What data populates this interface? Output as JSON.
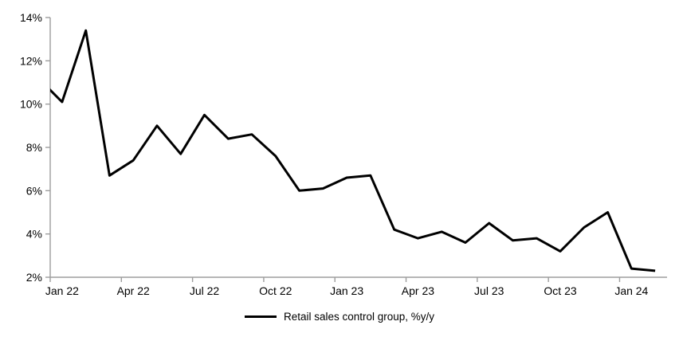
{
  "chart_data": {
    "type": "line",
    "title": "",
    "x": [
      "Jan 22",
      "Feb 22",
      "Mar 22",
      "Apr 22",
      "May 22",
      "Jun 22",
      "Jul 22",
      "Aug 22",
      "Sep 22",
      "Oct 22",
      "Nov 22",
      "Dec 22",
      "Jan 23",
      "Feb 23",
      "Mar 23",
      "Apr 23",
      "May 23",
      "Jun 23",
      "Jul 23",
      "Aug 23",
      "Sep 23",
      "Oct 23",
      "Nov 23",
      "Dec 23",
      "Jan 24",
      "Feb 24"
    ],
    "series": [
      {
        "name": "Retail sales control group, %y/y",
        "color": "#000000",
        "values": [
          10.1,
          13.4,
          6.7,
          7.4,
          9.0,
          7.7,
          9.5,
          8.4,
          8.6,
          7.6,
          6.0,
          6.1,
          6.6,
          6.7,
          4.2,
          3.8,
          4.1,
          3.6,
          4.5,
          3.7,
          3.8,
          3.2,
          4.3,
          5.0,
          2.4,
          2.3
        ]
      }
    ],
    "pre_series_point": {
      "label": "Dec 21",
      "value": 11.2,
      "note": "line enters plot clipped at left axis"
    },
    "x_tick_labels": [
      "Jan 22",
      "Apr 22",
      "Jul 22",
      "Oct 22",
      "Jan 23",
      "Apr 23",
      "Jul 23",
      "Oct 23",
      "Jan 24"
    ],
    "x_tick_every": 3,
    "y_ticks": [
      2,
      4,
      6,
      8,
      10,
      12,
      14
    ],
    "y_tick_suffix": "%",
    "ylim": [
      2,
      14
    ],
    "grid": false,
    "legend_position": "bottom-center",
    "axis_color": "#9d9d9d",
    "text_color": "#000000",
    "background": "#ffffff",
    "line_width": 3
  },
  "legend": {
    "label": "Retail sales control group, %y/y"
  }
}
